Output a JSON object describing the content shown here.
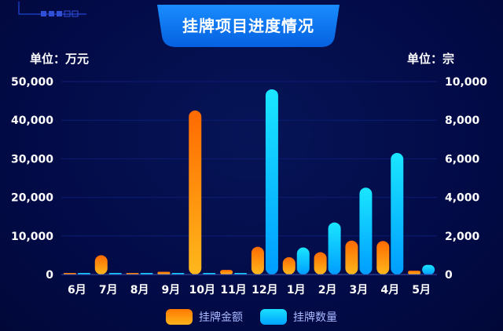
{
  "title": "挂牌项目进度情况",
  "unit_left": "单位：万元",
  "unit_right": "单位：宗",
  "colors": {
    "amount_top": "#ff6a00",
    "amount_bottom": "#ffb81c",
    "count_top": "#1ae6ff",
    "count_bottom": "#009dff",
    "banner": "#0a7cf0"
  },
  "chart_data": {
    "type": "bar",
    "categories": [
      "6月",
      "7月",
      "8月",
      "9月",
      "10月",
      "11月",
      "12月",
      "1月",
      "2月",
      "3月",
      "4月",
      "5月"
    ],
    "series": [
      {
        "name": "挂牌金额",
        "axis": "left",
        "values": [
          150,
          5000,
          200,
          700,
          42500,
          1200,
          7200,
          4500,
          5800,
          8800,
          8700,
          1000
        ]
      },
      {
        "name": "挂牌数量",
        "axis": "right",
        "values": [
          10,
          10,
          10,
          20,
          20,
          60,
          9600,
          1400,
          2700,
          4500,
          6300,
          500
        ]
      }
    ],
    "yleft_ticks": [
      "0",
      "10,000",
      "20,000",
      "30,000",
      "40,000",
      "50,000"
    ],
    "yright_ticks": [
      "0",
      "2,000",
      "4,000",
      "6,000",
      "8,000",
      "10,000"
    ],
    "ylim_left": [
      0,
      50000
    ],
    "ylim_right": [
      0,
      10000
    ],
    "grid": true,
    "legend_position": "bottom"
  }
}
